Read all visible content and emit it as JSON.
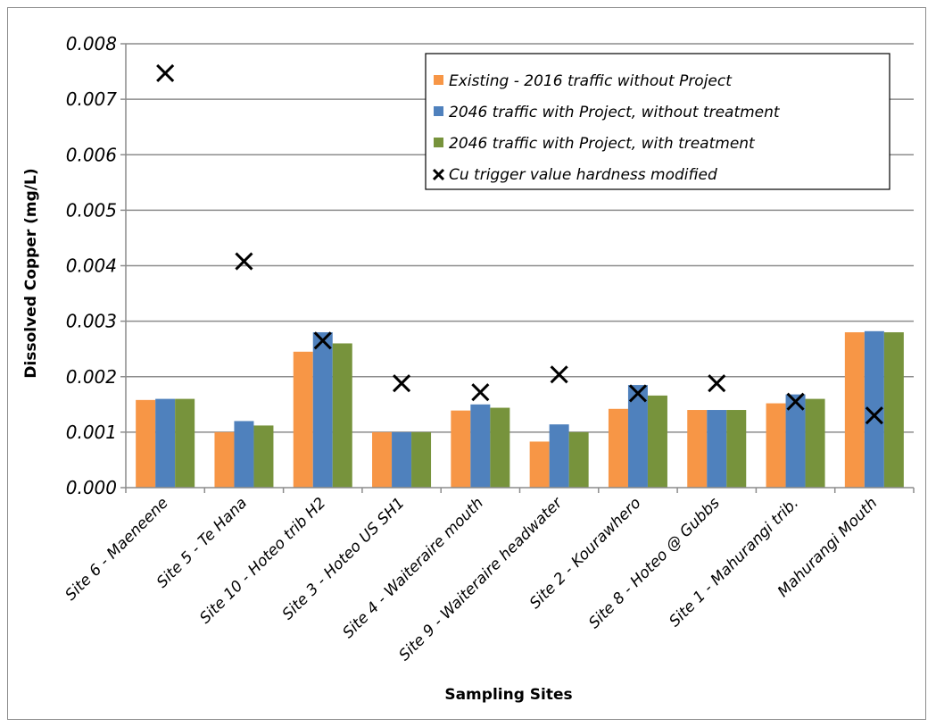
{
  "chart_data": {
    "type": "bar",
    "ylabel": "Dissolved Copper (mg/L)",
    "xlabel": "Sampling Sites",
    "ylim": [
      0,
      0.008
    ],
    "yticks": [
      "0.000",
      "0.001",
      "0.002",
      "0.003",
      "0.004",
      "0.005",
      "0.006",
      "0.007",
      "0.008"
    ],
    "grid": "horizontal",
    "legend_position": "top-right",
    "categories": [
      "Site 6 - Maeneene",
      "Site 5 - Te Hana",
      "Site 10 - Hoteo trib H2",
      "Site 3 - Hoteo US SH1",
      "Site 4 - Waiteraire mouth",
      "Site 9 - Waiteraire headwater",
      "Site 2 - Kourawhero",
      "Site 8 - Hoteo @ Gubbs",
      "Site 1 - Mahurangi trib.",
      "Mahurangi Mouth"
    ],
    "series": [
      {
        "name": "Existing - 2016 traffic without Project",
        "color": "#F79646",
        "values": [
          0.00158,
          0.001,
          0.00245,
          0.001,
          0.00139,
          0.00083,
          0.00142,
          0.0014,
          0.00152,
          0.0028
        ]
      },
      {
        "name": "2046 traffic with Project, without treatment",
        "color": "#4F81BD",
        "values": [
          0.0016,
          0.0012,
          0.0028,
          0.001,
          0.0015,
          0.00114,
          0.00185,
          0.0014,
          0.00168,
          0.00282
        ]
      },
      {
        "name": "2046 traffic with Project, with treatment",
        "color": "#77933C",
        "values": [
          0.0016,
          0.00112,
          0.0026,
          0.001,
          0.00144,
          0.001,
          0.00166,
          0.0014,
          0.0016,
          0.0028
        ]
      }
    ],
    "markers": {
      "name": "Cu trigger value hardness modified",
      "symbol": "x",
      "color": "#000000",
      "values": [
        0.00747,
        0.00408,
        0.00265,
        0.00188,
        0.00172,
        0.00204,
        0.0017,
        0.00188,
        0.00155,
        0.0013
      ]
    }
  }
}
